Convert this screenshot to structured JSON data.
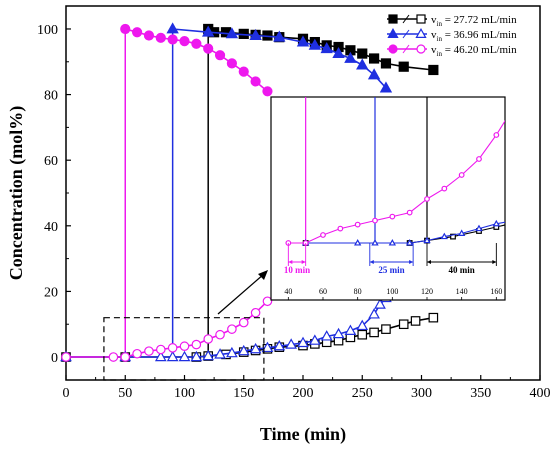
{
  "chart_data": {
    "type": "line",
    "xlabel": "Time (min)",
    "ylabel": "Concentration (mol%)",
    "xlim": [
      0,
      400
    ],
    "ylim": [
      -7,
      107
    ],
    "xticks": [
      0,
      50,
      100,
      150,
      200,
      250,
      300,
      350,
      400
    ],
    "yticks": [
      0,
      20,
      40,
      60,
      80,
      100
    ],
    "grid": false,
    "legend_position": "top-right",
    "series": [
      {
        "name": "v_in = 27.72 mL/min",
        "color": "#000000",
        "marker": "square",
        "filled": [
          [
            120,
            100
          ],
          [
            125,
            99
          ],
          [
            135,
            99
          ],
          [
            150,
            98.5
          ],
          [
            160,
            98.2
          ],
          [
            170,
            98
          ],
          [
            180,
            97.5
          ],
          [
            200,
            97
          ],
          [
            210,
            96
          ],
          [
            220,
            95
          ],
          [
            230,
            94.5
          ],
          [
            240,
            93.5
          ],
          [
            250,
            92.5
          ],
          [
            260,
            91
          ],
          [
            270,
            89.5
          ],
          [
            285,
            88.5
          ],
          [
            310,
            87.5
          ]
        ],
        "open": [
          [
            0,
            0
          ],
          [
            50,
            0
          ],
          [
            110,
            0
          ],
          [
            120,
            0.3
          ],
          [
            135,
            0.8
          ],
          [
            150,
            1.5
          ],
          [
            160,
            2
          ],
          [
            170,
            2.5
          ],
          [
            180,
            3
          ],
          [
            200,
            3.5
          ],
          [
            210,
            4
          ],
          [
            220,
            4.5
          ],
          [
            230,
            5
          ],
          [
            240,
            6
          ],
          [
            250,
            6.8
          ],
          [
            260,
            7.5
          ],
          [
            270,
            8.5
          ],
          [
            285,
            10
          ],
          [
            295,
            11
          ],
          [
            310,
            12
          ]
        ]
      },
      {
        "name": "v_in = 36.96 mL/min",
        "color": "#1f2fe0",
        "marker": "triangle",
        "filled": [
          [
            90,
            100
          ],
          [
            120,
            99
          ],
          [
            140,
            98.5
          ],
          [
            160,
            98
          ],
          [
            180,
            97.5
          ],
          [
            200,
            96
          ],
          [
            210,
            95
          ],
          [
            220,
            94
          ],
          [
            230,
            92.5
          ],
          [
            240,
            91
          ],
          [
            250,
            89
          ],
          [
            260,
            86
          ],
          [
            270,
            82
          ]
        ],
        "open": [
          [
            0,
            0
          ],
          [
            50,
            0
          ],
          [
            80,
            0
          ],
          [
            90,
            0
          ],
          [
            100,
            0
          ],
          [
            110,
            0
          ],
          [
            120,
            0.3
          ],
          [
            130,
            0.8
          ],
          [
            140,
            1.2
          ],
          [
            150,
            1.8
          ],
          [
            160,
            2.4
          ],
          [
            170,
            2.8
          ],
          [
            180,
            3.3
          ],
          [
            190,
            3.8
          ],
          [
            200,
            4.3
          ],
          [
            210,
            5
          ],
          [
            220,
            6.3
          ],
          [
            230,
            7
          ],
          [
            240,
            8
          ],
          [
            250,
            9.5
          ],
          [
            260,
            13
          ],
          [
            265,
            16
          ],
          [
            270,
            18
          ]
        ]
      },
      {
        "name": "v_in = 46.20 mL/min",
        "color": "#ee18ee",
        "marker": "circle",
        "filled": [
          [
            50,
            100
          ],
          [
            60,
            99
          ],
          [
            70,
            98
          ],
          [
            80,
            97.3
          ],
          [
            90,
            96.8
          ],
          [
            100,
            96.3
          ],
          [
            110,
            95.5
          ],
          [
            120,
            94
          ],
          [
            130,
            92
          ],
          [
            140,
            89.5
          ],
          [
            150,
            87
          ],
          [
            160,
            84
          ],
          [
            170,
            81
          ]
        ],
        "open": [
          [
            0,
            0
          ],
          [
            40,
            0
          ],
          [
            50,
            0
          ],
          [
            60,
            1
          ],
          [
            70,
            1.8
          ],
          [
            80,
            2.3
          ],
          [
            90,
            2.8
          ],
          [
            100,
            3.3
          ],
          [
            110,
            3.8
          ],
          [
            120,
            5.5
          ],
          [
            130,
            6.8
          ],
          [
            140,
            8.5
          ],
          [
            150,
            10.5
          ],
          [
            160,
            13.5
          ],
          [
            170,
            17
          ]
        ]
      }
    ],
    "breakthrough_lines": [
      {
        "x": 120,
        "color": "#000000"
      },
      {
        "x": 90,
        "color": "#1f2fe0"
      },
      {
        "x": 50,
        "color": "#ee18ee"
      }
    ],
    "zoom_box": {
      "x": [
        32,
        167
      ],
      "y": [
        -7,
        12
      ]
    },
    "inset": {
      "xlim": [
        30,
        165
      ],
      "xticks": [
        40,
        60,
        80,
        100,
        120,
        140,
        160
      ],
      "annotations": [
        {
          "text": "10 min",
          "from": 40,
          "to": 50,
          "color": "#ee18ee"
        },
        {
          "text": "25 min",
          "from": 87,
          "to": 112,
          "color": "#1f2fe0"
        },
        {
          "text": "40 min",
          "from": 120,
          "to": 160,
          "color": "#000000"
        }
      ]
    }
  }
}
